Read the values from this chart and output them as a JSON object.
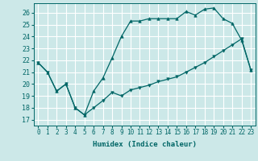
{
  "xlabel": "Humidex (Indice chaleur)",
  "background_color": "#cce8e8",
  "grid_color": "#ffffff",
  "line_color": "#006666",
  "xlim": [
    -0.5,
    23.5
  ],
  "ylim": [
    16.5,
    26.8
  ],
  "yticks": [
    17,
    18,
    19,
    20,
    21,
    22,
    23,
    24,
    25,
    26
  ],
  "xticks": [
    0,
    1,
    2,
    3,
    4,
    5,
    6,
    7,
    8,
    9,
    10,
    11,
    12,
    13,
    14,
    15,
    16,
    17,
    18,
    19,
    20,
    21,
    22,
    23
  ],
  "line1_x": [
    0,
    1,
    2,
    3,
    4,
    5,
    6,
    7,
    8,
    9,
    10,
    11,
    12,
    13,
    14,
    15,
    16,
    17,
    18,
    19,
    20,
    21,
    22,
    23
  ],
  "line1_y": [
    21.8,
    21.0,
    19.4,
    20.0,
    18.0,
    17.4,
    18.0,
    18.6,
    19.3,
    19.0,
    19.5,
    19.7,
    19.9,
    20.2,
    20.4,
    20.6,
    21.0,
    21.4,
    21.8,
    22.3,
    22.8,
    23.3,
    23.8,
    21.2
  ],
  "line2_x": [
    0,
    1,
    2,
    3,
    4,
    5,
    6,
    7,
    8,
    9,
    10,
    11,
    12,
    13,
    14,
    15,
    16,
    17,
    18,
    19,
    20,
    21,
    22,
    23
  ],
  "line2_y": [
    21.8,
    21.0,
    19.4,
    20.0,
    18.0,
    17.4,
    19.4,
    20.5,
    22.2,
    24.0,
    25.3,
    25.3,
    25.5,
    25.5,
    25.5,
    25.5,
    26.1,
    25.8,
    26.3,
    26.4,
    25.5,
    25.1,
    23.7,
    21.2
  ],
  "marker1": "v",
  "marker2": "^",
  "markersize": 2.5,
  "linewidth": 0.9,
  "fontsize_ticks": 5.5,
  "fontsize_xlabel": 6.5
}
